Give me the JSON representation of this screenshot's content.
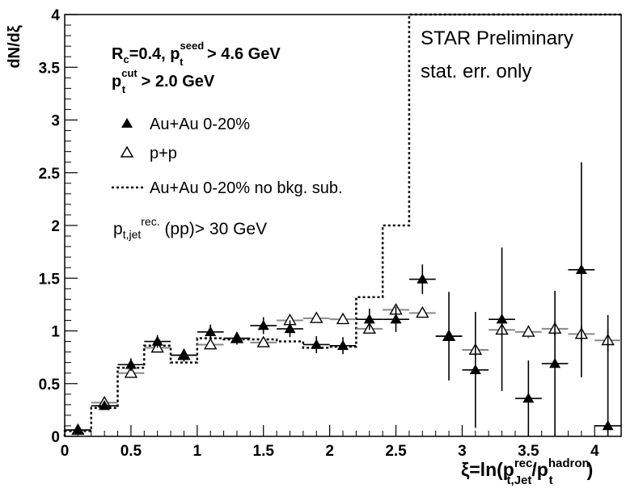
{
  "chart_data": {
    "type": "scatter",
    "xlabel": "ξ=ln(p",
    "xlabel_sup": "rec.",
    "xlabel_sub": "t,Jet",
    "xlabel_mid": "/p",
    "xlabel_sup2": "hadron",
    "xlabel_sub2": "t",
    "xlabel_end": ")",
    "ylabel": "dN/dξ",
    "xlim": [
      0,
      4.2
    ],
    "ylim": [
      0,
      4
    ],
    "xticks": [
      0,
      0.5,
      1,
      1.5,
      2,
      2.5,
      3,
      3.5,
      4
    ],
    "yticks": [
      0,
      0.5,
      1,
      1.5,
      2,
      2.5,
      3,
      3.5,
      4
    ],
    "xtick_labels": [
      "0",
      "0.5",
      "1",
      "1.5",
      "2",
      "2.5",
      "3",
      "3.5",
      "4"
    ],
    "ytick_labels": [
      "0",
      "0.5",
      "1",
      "1.5",
      "2",
      "2.5",
      "3",
      "3.5",
      "4"
    ],
    "annotations": {
      "star_line1": "STAR Preliminary",
      "star_line2": "stat. err. only",
      "rc_text": "R",
      "rc_sub": "c",
      "rc_mid": "=0.4, p",
      "rc_sup": "seed",
      "rc_sub2": "t",
      "rc_end": " > 4.6 GeV",
      "cut_text": "p",
      "cut_sup": "cut",
      "cut_sub": "t",
      "cut_end": " > 2.0 GeV",
      "pt_text": "p",
      "pt_sub": "t,jet",
      "pt_sup": "rec.",
      "pt_end": " (pp)> 30 GeV"
    },
    "legend": [
      "Au+Au 0-20%",
      "p+p",
      "Au+Au 0-20% no bkg. sub."
    ],
    "series": [
      {
        "name": "Au+Au 0-20%",
        "marker": "filled-triangle",
        "x": [
          0.1,
          0.3,
          0.5,
          0.7,
          0.9,
          1.1,
          1.3,
          1.5,
          1.7,
          1.9,
          2.1,
          2.3,
          2.5,
          2.7,
          2.9,
          3.1,
          3.3,
          3.5,
          3.7,
          3.9,
          4.1
        ],
        "y": [
          0.06,
          0.29,
          0.68,
          0.9,
          0.77,
          0.99,
          0.93,
          1.05,
          1.02,
          0.87,
          0.86,
          1.11,
          1.11,
          1.49,
          0.95,
          0.63,
          1.11,
          0.36,
          0.69,
          1.58,
          0.1
        ],
        "err": [
          0.03,
          0.03,
          0.06,
          0.06,
          0.06,
          0.07,
          0.06,
          0.08,
          0.08,
          0.08,
          0.08,
          0.1,
          0.12,
          0.14,
          0.42,
          0.55,
          0.68,
          0.36,
          0.69,
          1.02,
          1.05
        ]
      },
      {
        "name": "p+p",
        "marker": "open-triangle",
        "x": [
          0.1,
          0.3,
          0.5,
          0.7,
          0.9,
          1.1,
          1.3,
          1.5,
          1.7,
          1.9,
          2.1,
          2.3,
          2.5,
          2.7,
          2.9,
          3.1,
          3.3,
          3.5,
          3.7,
          3.9,
          4.1
        ],
        "y": [
          0.06,
          0.32,
          0.6,
          0.84,
          0.77,
          0.87,
          0.93,
          0.89,
          1.1,
          1.12,
          1.11,
          1.02,
          1.2,
          1.17,
          0.95,
          0.82,
          1.01,
          0.99,
          1.02,
          0.97,
          0.91
        ],
        "err": [
          0.01,
          0.01,
          0.02,
          0.02,
          0.02,
          0.02,
          0.02,
          0.02,
          0.02,
          0.02,
          0.02,
          0.02,
          0.03,
          0.03,
          0.03,
          0.04,
          0.05,
          0.06,
          0.07,
          0.08,
          0.1
        ]
      },
      {
        "name": "Au+Au 0-20% no bkg. sub.",
        "marker": "dotted-histogram",
        "bins": [
          [
            0.0,
            0.2
          ],
          [
            0.2,
            0.4
          ],
          [
            0.4,
            0.6
          ],
          [
            0.6,
            0.8
          ],
          [
            0.8,
            1.0
          ],
          [
            1.0,
            1.2
          ],
          [
            1.2,
            1.4
          ],
          [
            1.4,
            1.6
          ],
          [
            1.6,
            1.8
          ],
          [
            1.8,
            2.0
          ],
          [
            2.0,
            2.2
          ],
          [
            2.2,
            2.4
          ],
          [
            2.4,
            2.6
          ],
          [
            2.6,
            4.2
          ]
        ],
        "values": [
          0.05,
          0.27,
          0.65,
          0.86,
          0.7,
          0.93,
          0.92,
          0.92,
          0.9,
          0.84,
          0.85,
          1.32,
          2.0,
          4.0
        ]
      }
    ]
  }
}
